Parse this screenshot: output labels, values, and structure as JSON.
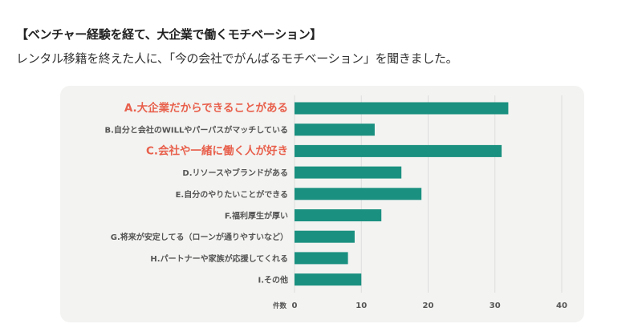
{
  "header": {
    "title": "【ベンチャー経験を経て、大企業で働くモチベーション】",
    "subtitle": "レンタル移籍を終えた人に、「今の会社でがんばるモチベーション」を聞きました。"
  },
  "chart_data": {
    "type": "bar",
    "orientation": "horizontal",
    "categories": [
      "A.大企業だからできることがある",
      "B.自分と会社のWILLやパーパスがマッチしている",
      "C.会社や一緒に働く人が好き",
      "D.リソースやブランドがある",
      "E.自分のやりたいことができる",
      "F.福利厚生が厚い",
      "G.将来が安定してる（ローンが通りやすいなど）",
      "H.パートナーや家族が応援してくれる",
      "I.その他"
    ],
    "values": [
      32,
      12,
      31,
      16,
      19,
      13,
      9,
      8,
      10
    ],
    "highlighted": [
      true,
      false,
      true,
      false,
      false,
      false,
      false,
      false,
      false
    ],
    "xlabel": "件数",
    "xlim": [
      0,
      40
    ],
    "xticks": [
      0,
      10,
      20,
      30,
      40
    ],
    "grid": true,
    "bar_color": "#1a9080",
    "highlight_text_color": "#e8604c",
    "label_color": "#555555",
    "grid_color": "#dddddd",
    "panel_color": "#f3f3f1"
  }
}
